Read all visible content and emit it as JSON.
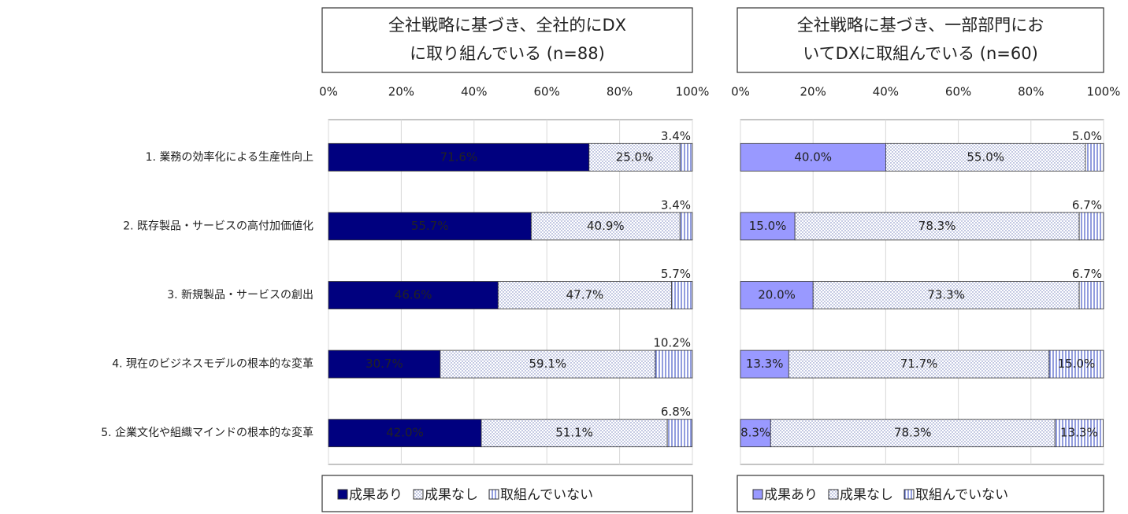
{
  "chart_data": [
    {
      "type": "bar",
      "stacked": true,
      "orientation": "horizontal",
      "title": [
        "全社戦略に基づき、全社的にDX",
        "に取り組んでいる (n=88)"
      ],
      "categories": [
        "1. 業務の効率化による生産性向上",
        "2. 既存製品・サービスの高付加価値化",
        "3. 新規製品・サービスの創出",
        "4. 現在のビジネスモデルの根本的な変革",
        "5. 企業文化や組織マインドの根本的な変革"
      ],
      "xlim": [
        0,
        100
      ],
      "xticks": [
        {
          "value": 0,
          "label": "0%"
        },
        {
          "value": 20,
          "label": "20%"
        },
        {
          "value": 40,
          "label": "40%"
        },
        {
          "value": 60,
          "label": "60%"
        },
        {
          "value": 80,
          "label": "80%"
        },
        {
          "value": 100,
          "label": "100%"
        }
      ],
      "grid": true,
      "series": [
        {
          "name": "成果あり",
          "color": "#00007f",
          "pattern": "solid",
          "values": [
            71.6,
            55.7,
            46.6,
            30.7,
            42.0
          ],
          "value_labels": [
            "71.6%",
            "55.7%",
            "46.6%",
            "30.7%",
            "42.0%"
          ]
        },
        {
          "name": "成果なし",
          "color": "#ffffff",
          "pattern": "dots",
          "values": [
            25.0,
            40.9,
            47.7,
            59.1,
            51.1
          ],
          "value_labels": [
            "25.0%",
            "40.9%",
            "47.7%",
            "59.1%",
            "51.1%"
          ]
        },
        {
          "name": "取組んでいない",
          "color": "#ffffff",
          "pattern": "vlines",
          "values": [
            3.4,
            3.4,
            5.7,
            10.2,
            6.8
          ],
          "value_labels": [
            "3.4%",
            "3.4%",
            "5.7%",
            "10.2%",
            "6.8%"
          ]
        }
      ]
    },
    {
      "type": "bar",
      "stacked": true,
      "orientation": "horizontal",
      "title": [
        "全社戦略に基づき、一部部門にお",
        "いてDXに取組んでいる (n=60)"
      ],
      "xlim": [
        0,
        100
      ],
      "xticks": [
        {
          "value": 0,
          "label": "0%"
        },
        {
          "value": 20,
          "label": "20%"
        },
        {
          "value": 40,
          "label": "40%"
        },
        {
          "value": 60,
          "label": "60%"
        },
        {
          "value": 80,
          "label": "80%"
        },
        {
          "value": 100,
          "label": "100%"
        }
      ],
      "grid": true,
      "series": [
        {
          "name": "成果あり",
          "color": "#9999ff",
          "pattern": "solid",
          "values": [
            40.0,
            15.0,
            20.0,
            13.3,
            8.3
          ],
          "value_labels": [
            "40.0%",
            "15.0%",
            "20.0%",
            "13.3%",
            "8.3%"
          ]
        },
        {
          "name": "成果なし",
          "color": "#ffffff",
          "pattern": "dots",
          "values": [
            55.0,
            78.3,
            73.3,
            71.7,
            78.3
          ],
          "value_labels": [
            "55.0%",
            "78.3%",
            "73.3%",
            "71.7%",
            "78.3%"
          ]
        },
        {
          "name": "取組んでいない",
          "color": "#ffffff",
          "pattern": "vlines",
          "values": [
            5.0,
            6.7,
            6.7,
            15.0,
            13.3
          ],
          "value_labels": [
            "5.0%",
            "6.7%",
            "6.7%",
            "15.0%",
            "13.3%"
          ]
        }
      ]
    }
  ]
}
